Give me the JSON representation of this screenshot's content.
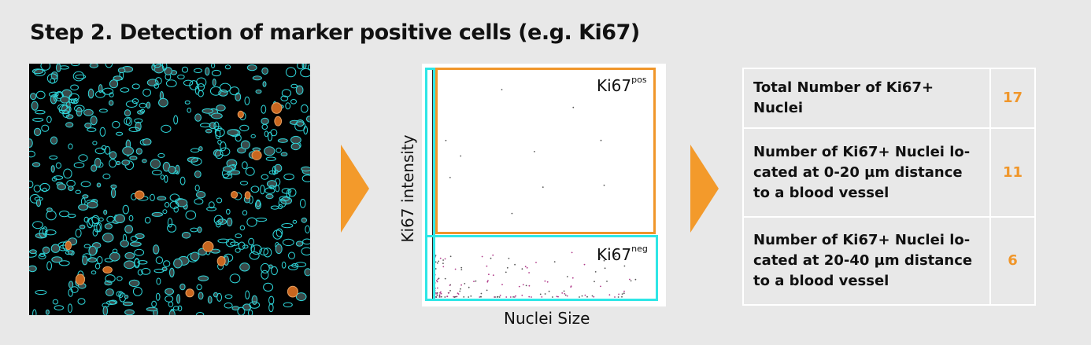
{
  "title": "Step 2. Detection of marker positive cells (e.g. Ki67)",
  "micrograph": {
    "icon": "fluorescence-microscopy-image"
  },
  "arrow_color": "#f39a2b",
  "plot": {
    "xlabel": "Nuclei Size",
    "ylabel": "Ki67 intensity",
    "gate_pos_label": "Ki67",
    "gate_pos_sup": "pos",
    "gate_neg_label": "Ki67",
    "gate_neg_sup": "neg",
    "gate_pos_color": "#f0962a",
    "gate_neg_color": "#2ee6e6"
  },
  "results": [
    {
      "label": "Total Number of Ki67+ Nuclei",
      "value": "17"
    },
    {
      "label": "Number of Ki67+ Nuclei lo-cated at 0-20 µm distance to a blood vessel",
      "value": "11"
    },
    {
      "label": "Number of Ki67+ Nuclei lo-cated at 20-40 µm distance to a blood vessel",
      "value": "6"
    }
  ]
}
